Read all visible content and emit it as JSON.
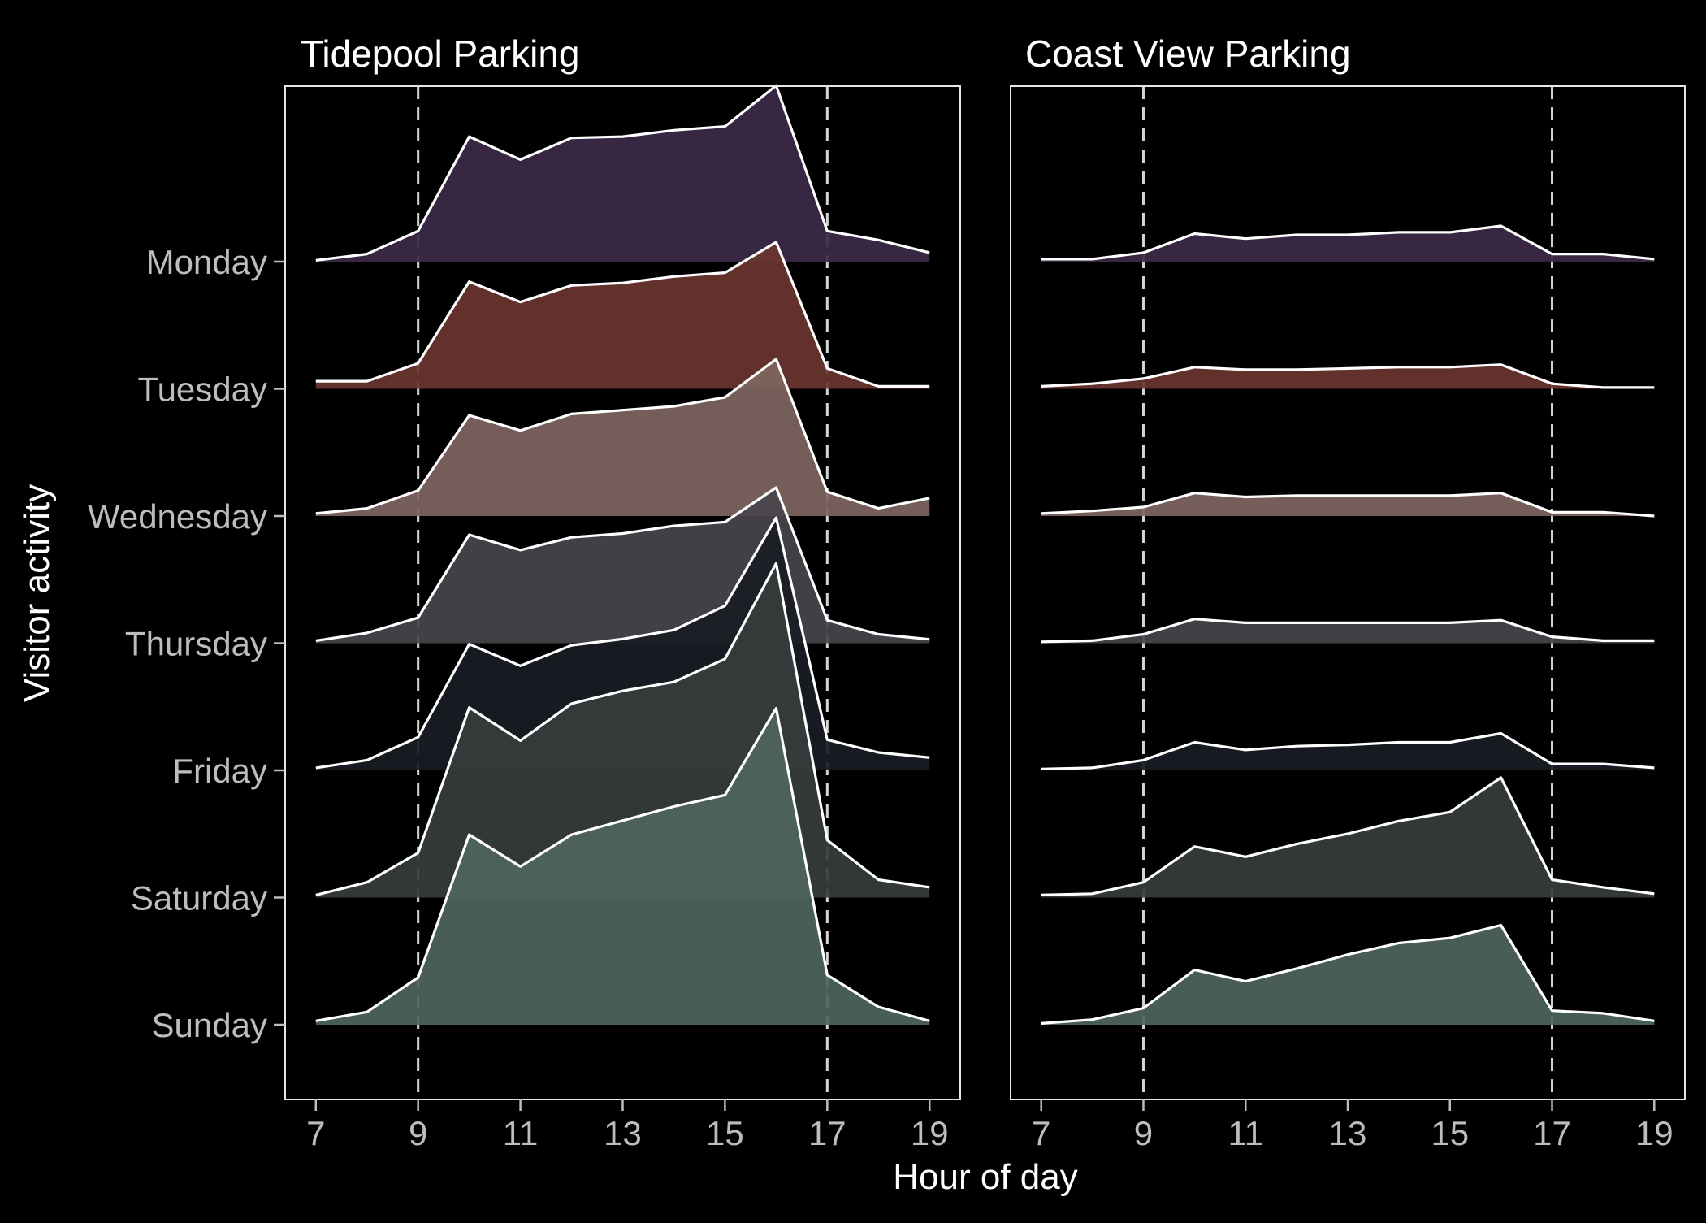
{
  "chart_data": {
    "type": "area",
    "subtype": "ridgeline",
    "xlabel": "Hour of day",
    "ylabel": "Visitor activity",
    "x": [
      7,
      8,
      9,
      10,
      11,
      12,
      13,
      14,
      15,
      16,
      17,
      18,
      19
    ],
    "x_ticks": [
      7,
      9,
      11,
      13,
      15,
      17,
      19
    ],
    "xlim": [
      6.4,
      19.6
    ],
    "reference_lines_x": [
      9,
      17
    ],
    "days": [
      "Monday",
      "Tuesday",
      "Wednesday",
      "Thursday",
      "Friday",
      "Saturday",
      "Sunday"
    ],
    "colors": {
      "Monday": "#3c2a48",
      "Tuesday": "#6a3530",
      "Wednesday": "#7f6661",
      "Thursday": "#48454c",
      "Friday": "#191d24",
      "Saturday": "#363d3c",
      "Sunday": "#4e645f"
    },
    "fill_opacity": 0.92,
    "line_color": "#ffffff",
    "panels": [
      {
        "title": "Tidepool Parking",
        "series": [
          {
            "name": "Monday",
            "values": [
              0.01,
              0.06,
              0.24,
              0.98,
              0.8,
              0.97,
              0.98,
              1.03,
              1.06,
              1.38,
              0.24,
              0.17,
              0.07
            ]
          },
          {
            "name": "Tuesday",
            "values": [
              0.06,
              0.06,
              0.2,
              0.84,
              0.68,
              0.81,
              0.83,
              0.88,
              0.91,
              1.15,
              0.16,
              0.02,
              0.02
            ]
          },
          {
            "name": "Wednesday",
            "values": [
              0.02,
              0.06,
              0.2,
              0.79,
              0.67,
              0.8,
              0.83,
              0.86,
              0.93,
              1.23,
              0.19,
              0.06,
              0.14
            ]
          },
          {
            "name": "Thursday",
            "values": [
              0.02,
              0.08,
              0.2,
              0.85,
              0.73,
              0.83,
              0.86,
              0.92,
              0.95,
              1.22,
              0.18,
              0.07,
              0.03
            ]
          },
          {
            "name": "Friday",
            "values": [
              0.02,
              0.08,
              0.26,
              0.99,
              0.82,
              0.98,
              1.03,
              1.1,
              1.29,
              1.98,
              0.24,
              0.14,
              0.1
            ]
          },
          {
            "name": "Saturday",
            "values": [
              0.02,
              0.12,
              0.35,
              1.49,
              1.23,
              1.52,
              1.62,
              1.69,
              1.87,
              2.62,
              0.45,
              0.14,
              0.08
            ]
          },
          {
            "name": "Sunday",
            "values": [
              0.03,
              0.1,
              0.37,
              1.49,
              1.24,
              1.49,
              1.6,
              1.71,
              1.8,
              2.48,
              0.39,
              0.14,
              0.03
            ]
          }
        ]
      },
      {
        "title": "Coast View Parking",
        "series": [
          {
            "name": "Monday",
            "values": [
              0.02,
              0.02,
              0.07,
              0.22,
              0.18,
              0.21,
              0.21,
              0.23,
              0.23,
              0.28,
              0.06,
              0.06,
              0.02
            ]
          },
          {
            "name": "Tuesday",
            "values": [
              0.02,
              0.04,
              0.08,
              0.17,
              0.15,
              0.15,
              0.16,
              0.17,
              0.17,
              0.19,
              0.04,
              0.01,
              0.01
            ]
          },
          {
            "name": "Wednesday",
            "values": [
              0.02,
              0.04,
              0.07,
              0.18,
              0.15,
              0.16,
              0.16,
              0.16,
              0.16,
              0.18,
              0.03,
              0.03,
              0.0
            ]
          },
          {
            "name": "Thursday",
            "values": [
              0.01,
              0.02,
              0.07,
              0.19,
              0.16,
              0.16,
              0.16,
              0.16,
              0.16,
              0.18,
              0.05,
              0.02,
              0.02
            ]
          },
          {
            "name": "Friday",
            "values": [
              0.01,
              0.02,
              0.08,
              0.22,
              0.16,
              0.19,
              0.2,
              0.22,
              0.22,
              0.29,
              0.05,
              0.05,
              0.02
            ]
          },
          {
            "name": "Saturday",
            "values": [
              0.02,
              0.03,
              0.12,
              0.4,
              0.32,
              0.42,
              0.5,
              0.6,
              0.67,
              0.94,
              0.14,
              0.08,
              0.03
            ]
          },
          {
            "name": "Sunday",
            "values": [
              0.01,
              0.04,
              0.13,
              0.43,
              0.34,
              0.44,
              0.55,
              0.64,
              0.68,
              0.78,
              0.11,
              0.09,
              0.03
            ]
          }
        ]
      }
    ]
  }
}
